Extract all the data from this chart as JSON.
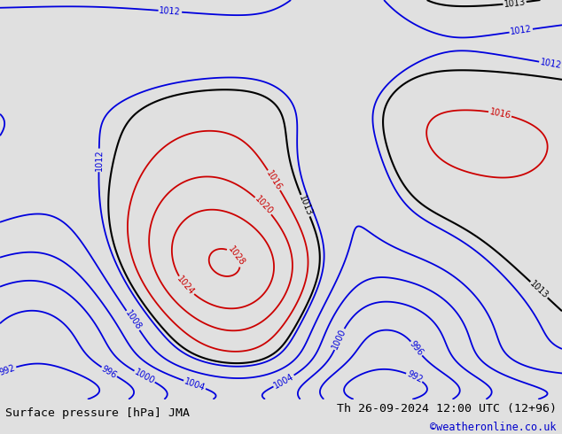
{
  "title_left": "Surface pressure [hPa] JMA",
  "title_right": "Th 26-09-2024 12:00 UTC (12+96)",
  "copyright": "©weatheronline.co.uk",
  "background_color": "#d4dce8",
  "land_color_aus": "#b8dfa0",
  "land_color_other": "#c8c8c8",
  "figure_width": 6.34,
  "figure_height": 4.9,
  "dpi": 100,
  "bottom_bar_color": "#e0e0e0",
  "title_fontsize": 9.5,
  "copyright_fontsize": 8.5,
  "copyright_color": "#0000cc",
  "lon_min": 90,
  "lon_max": 210,
  "lat_min": -63,
  "lat_max": 12
}
